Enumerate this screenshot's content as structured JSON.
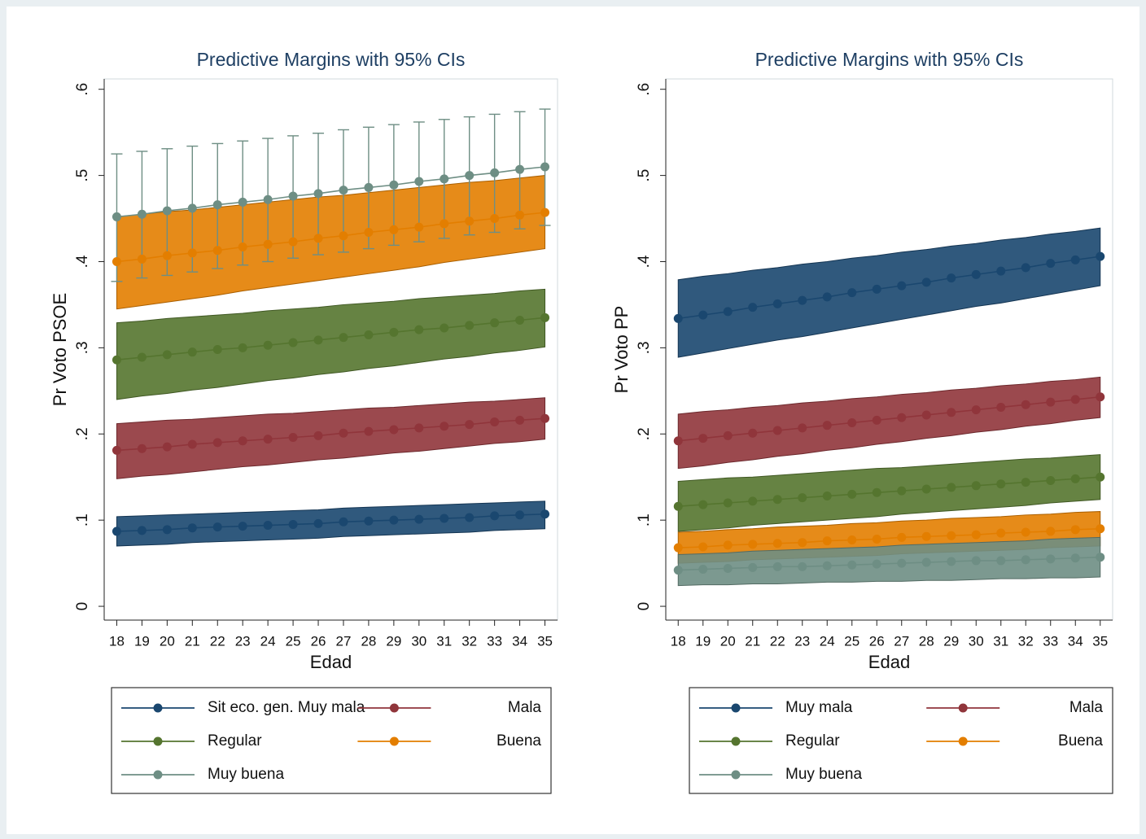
{
  "chart_data": [
    {
      "type": "line",
      "title": "Predictive Margins with 95% CIs",
      "x_label": "Edad",
      "y_label": "Pr Voto PSOE",
      "x": [
        18,
        19,
        20,
        21,
        22,
        23,
        24,
        25,
        26,
        27,
        28,
        29,
        30,
        31,
        32,
        33,
        34,
        35
      ],
      "xlim": [
        17.5,
        35.5
      ],
      "xticks": [
        18,
        19,
        20,
        21,
        22,
        23,
        24,
        25,
        26,
        27,
        28,
        29,
        30,
        31,
        32,
        33,
        34,
        35
      ],
      "ylim": [
        -0.016,
        0.612
      ],
      "yticks": [
        0,
        {
          "value": 0.1,
          "label": ".1"
        },
        {
          "value": 0.2,
          "label": ".2"
        },
        {
          "value": 0.3,
          "label": ".3"
        },
        {
          "value": 0.4,
          "label": ".4"
        },
        {
          "value": 0.5,
          "label": ".5"
        },
        {
          "value": 0.6,
          "label": ".6"
        }
      ],
      "grid": false,
      "legend": "bottom",
      "series": [
        {
          "name": "Sit eco. gen. Muy mala",
          "color": "#1a476f",
          "ci_style": "band",
          "values": [
            0.087,
            0.088,
            0.089,
            0.091,
            0.092,
            0.093,
            0.094,
            0.095,
            0.096,
            0.098,
            0.099,
            0.1,
            0.101,
            0.102,
            0.103,
            0.105,
            0.106,
            0.107
          ],
          "ci_low": [
            0.07,
            0.071,
            0.072,
            0.074,
            0.075,
            0.076,
            0.077,
            0.078,
            0.079,
            0.081,
            0.082,
            0.083,
            0.084,
            0.085,
            0.086,
            0.088,
            0.089,
            0.09
          ],
          "ci_high": [
            0.104,
            0.105,
            0.106,
            0.107,
            0.108,
            0.109,
            0.11,
            0.111,
            0.112,
            0.114,
            0.115,
            0.116,
            0.117,
            0.118,
            0.119,
            0.12,
            0.121,
            0.122
          ]
        },
        {
          "name": "Mala",
          "color": "#90353b",
          "ci_style": "band",
          "values": [
            0.181,
            0.183,
            0.185,
            0.188,
            0.19,
            0.192,
            0.194,
            0.196,
            0.198,
            0.201,
            0.203,
            0.205,
            0.207,
            0.209,
            0.211,
            0.214,
            0.216,
            0.218
          ],
          "ci_low": [
            0.148,
            0.151,
            0.153,
            0.156,
            0.159,
            0.162,
            0.164,
            0.167,
            0.17,
            0.172,
            0.175,
            0.178,
            0.18,
            0.183,
            0.186,
            0.189,
            0.191,
            0.194
          ],
          "ci_high": [
            0.212,
            0.214,
            0.216,
            0.217,
            0.219,
            0.221,
            0.223,
            0.224,
            0.226,
            0.228,
            0.23,
            0.231,
            0.233,
            0.235,
            0.237,
            0.238,
            0.24,
            0.242
          ]
        },
        {
          "name": "Regular",
          "color": "#55752f",
          "ci_style": "band",
          "values": [
            0.286,
            0.289,
            0.292,
            0.295,
            0.298,
            0.3,
            0.303,
            0.306,
            0.309,
            0.312,
            0.315,
            0.318,
            0.321,
            0.323,
            0.326,
            0.329,
            0.332,
            0.335
          ],
          "ci_low": [
            0.24,
            0.244,
            0.247,
            0.251,
            0.254,
            0.258,
            0.262,
            0.265,
            0.269,
            0.272,
            0.276,
            0.279,
            0.283,
            0.287,
            0.29,
            0.294,
            0.297,
            0.301
          ],
          "ci_high": [
            0.329,
            0.331,
            0.334,
            0.336,
            0.338,
            0.34,
            0.343,
            0.345,
            0.347,
            0.35,
            0.352,
            0.354,
            0.357,
            0.359,
            0.361,
            0.363,
            0.366,
            0.368
          ]
        },
        {
          "name": "Buena",
          "color": "#e37e00",
          "ci_style": "band",
          "values": [
            0.4,
            0.403,
            0.407,
            0.41,
            0.413,
            0.417,
            0.42,
            0.423,
            0.427,
            0.43,
            0.434,
            0.437,
            0.44,
            0.444,
            0.447,
            0.45,
            0.454,
            0.457
          ],
          "ci_low": [
            0.345,
            0.349,
            0.353,
            0.357,
            0.361,
            0.366,
            0.37,
            0.374,
            0.378,
            0.382,
            0.386,
            0.39,
            0.394,
            0.399,
            0.403,
            0.407,
            0.411,
            0.415
          ],
          "ci_high": [
            0.452,
            0.455,
            0.458,
            0.46,
            0.463,
            0.466,
            0.469,
            0.472,
            0.475,
            0.477,
            0.48,
            0.483,
            0.486,
            0.489,
            0.492,
            0.494,
            0.497,
            0.5
          ]
        },
        {
          "name": "Muy buena",
          "color": "#6e8e84",
          "ci_style": "bars",
          "values": [
            0.452,
            0.455,
            0.459,
            0.462,
            0.466,
            0.469,
            0.472,
            0.476,
            0.479,
            0.483,
            0.486,
            0.489,
            0.493,
            0.496,
            0.5,
            0.503,
            0.507,
            0.51
          ],
          "ci_low": [
            0.377,
            0.381,
            0.384,
            0.388,
            0.392,
            0.396,
            0.4,
            0.404,
            0.408,
            0.411,
            0.415,
            0.419,
            0.423,
            0.427,
            0.431,
            0.434,
            0.438,
            0.442
          ],
          "ci_high": [
            0.525,
            0.528,
            0.531,
            0.534,
            0.537,
            0.54,
            0.543,
            0.546,
            0.549,
            0.553,
            0.556,
            0.559,
            0.562,
            0.565,
            0.568,
            0.571,
            0.574,
            0.577
          ]
        }
      ]
    },
    {
      "type": "line",
      "title": "Predictive Margins with 95% CIs",
      "x_label": "Edad",
      "y_label": "Pr Voto PP",
      "x": [
        18,
        19,
        20,
        21,
        22,
        23,
        24,
        25,
        26,
        27,
        28,
        29,
        30,
        31,
        32,
        33,
        34,
        35
      ],
      "xlim": [
        17.5,
        35.5
      ],
      "xticks": [
        18,
        19,
        20,
        21,
        22,
        23,
        24,
        25,
        26,
        27,
        28,
        29,
        30,
        31,
        32,
        33,
        34,
        35
      ],
      "ylim": [
        -0.016,
        0.612
      ],
      "yticks": [
        0,
        {
          "value": 0.1,
          "label": ".1"
        },
        {
          "value": 0.2,
          "label": ".2"
        },
        {
          "value": 0.3,
          "label": ".3"
        },
        {
          "value": 0.4,
          "label": ".4"
        },
        {
          "value": 0.5,
          "label": ".5"
        },
        {
          "value": 0.6,
          "label": ".6"
        }
      ],
      "grid": false,
      "legend": "bottom",
      "series": [
        {
          "name": "Muy mala",
          "color": "#1a476f",
          "ci_style": "band",
          "values": [
            0.334,
            0.338,
            0.342,
            0.347,
            0.351,
            0.355,
            0.359,
            0.364,
            0.368,
            0.372,
            0.376,
            0.381,
            0.385,
            0.389,
            0.393,
            0.398,
            0.402,
            0.406
          ],
          "ci_low": [
            0.289,
            0.294,
            0.299,
            0.304,
            0.309,
            0.313,
            0.318,
            0.323,
            0.328,
            0.333,
            0.338,
            0.343,
            0.348,
            0.352,
            0.357,
            0.362,
            0.367,
            0.372
          ],
          "ci_high": [
            0.379,
            0.383,
            0.386,
            0.39,
            0.393,
            0.397,
            0.4,
            0.404,
            0.407,
            0.411,
            0.414,
            0.418,
            0.421,
            0.425,
            0.428,
            0.432,
            0.435,
            0.439
          ]
        },
        {
          "name": "Mala",
          "color": "#90353b",
          "ci_style": "band",
          "values": [
            0.192,
            0.195,
            0.198,
            0.201,
            0.204,
            0.207,
            0.21,
            0.213,
            0.216,
            0.219,
            0.222,
            0.225,
            0.228,
            0.231,
            0.234,
            0.237,
            0.24,
            0.243
          ],
          "ci_low": [
            0.16,
            0.163,
            0.167,
            0.17,
            0.174,
            0.177,
            0.181,
            0.184,
            0.188,
            0.191,
            0.195,
            0.198,
            0.202,
            0.205,
            0.209,
            0.212,
            0.216,
            0.219
          ],
          "ci_high": [
            0.223,
            0.226,
            0.228,
            0.231,
            0.233,
            0.236,
            0.238,
            0.241,
            0.243,
            0.246,
            0.248,
            0.251,
            0.253,
            0.256,
            0.258,
            0.261,
            0.263,
            0.266
          ]
        },
        {
          "name": "Regular",
          "color": "#55752f",
          "ci_style": "band",
          "values": [
            0.116,
            0.118,
            0.12,
            0.122,
            0.124,
            0.126,
            0.128,
            0.13,
            0.132,
            0.134,
            0.136,
            0.138,
            0.14,
            0.142,
            0.144,
            0.146,
            0.148,
            0.15
          ],
          "ci_low": [
            0.087,
            0.089,
            0.091,
            0.094,
            0.096,
            0.098,
            0.1,
            0.102,
            0.104,
            0.107,
            0.109,
            0.111,
            0.113,
            0.115,
            0.117,
            0.12,
            0.122,
            0.124
          ],
          "ci_high": [
            0.145,
            0.147,
            0.149,
            0.15,
            0.152,
            0.154,
            0.156,
            0.158,
            0.16,
            0.161,
            0.163,
            0.165,
            0.167,
            0.169,
            0.171,
            0.172,
            0.174,
            0.176
          ]
        },
        {
          "name": "Buena",
          "color": "#e37e00",
          "ci_style": "band",
          "values": [
            0.068,
            0.069,
            0.071,
            0.072,
            0.073,
            0.074,
            0.076,
            0.077,
            0.078,
            0.08,
            0.081,
            0.082,
            0.083,
            0.085,
            0.086,
            0.087,
            0.089,
            0.09
          ],
          "ci_low": [
            0.05,
            0.051,
            0.052,
            0.054,
            0.055,
            0.056,
            0.057,
            0.058,
            0.059,
            0.061,
            0.062,
            0.063,
            0.064,
            0.065,
            0.066,
            0.068,
            0.069,
            0.07
          ],
          "ci_high": [
            0.086,
            0.087,
            0.089,
            0.09,
            0.092,
            0.093,
            0.094,
            0.096,
            0.097,
            0.099,
            0.1,
            0.102,
            0.103,
            0.104,
            0.106,
            0.107,
            0.109,
            0.11
          ]
        },
        {
          "name": "Muy buena",
          "color": "#6e8e84",
          "ci_style": "band",
          "values": [
            0.042,
            0.043,
            0.044,
            0.045,
            0.046,
            0.046,
            0.047,
            0.048,
            0.049,
            0.05,
            0.051,
            0.052,
            0.053,
            0.053,
            0.054,
            0.055,
            0.056,
            0.057
          ],
          "ci_low": [
            0.024,
            0.025,
            0.025,
            0.026,
            0.026,
            0.027,
            0.028,
            0.028,
            0.029,
            0.029,
            0.03,
            0.03,
            0.031,
            0.032,
            0.032,
            0.033,
            0.033,
            0.034
          ],
          "ci_high": [
            0.06,
            0.061,
            0.062,
            0.064,
            0.065,
            0.066,
            0.067,
            0.068,
            0.069,
            0.071,
            0.072,
            0.073,
            0.074,
            0.075,
            0.076,
            0.078,
            0.079,
            0.08
          ]
        }
      ]
    }
  ]
}
